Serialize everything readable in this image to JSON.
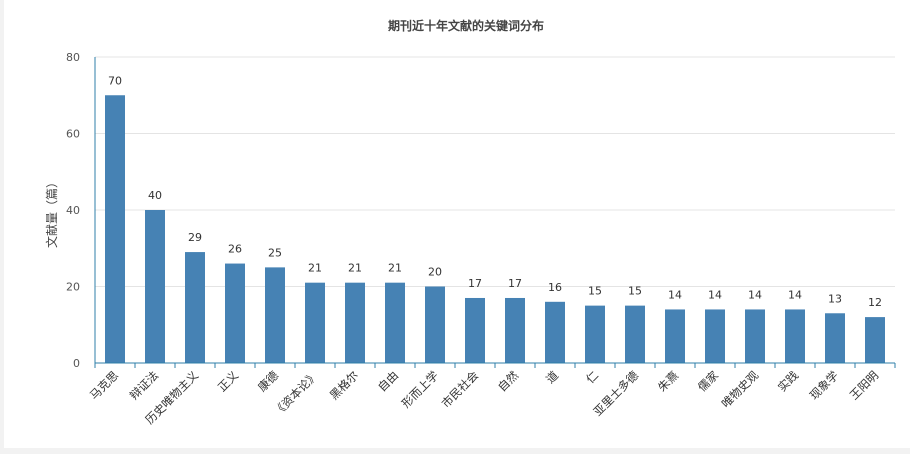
{
  "chart_data": {
    "type": "bar",
    "title": "期刊近十年文献的关键词分布",
    "xlabel": "",
    "ylabel": "文献量（篇）",
    "ylim": [
      0,
      80
    ],
    "yticks": [
      0,
      20,
      40,
      60,
      80
    ],
    "grid": true,
    "legend": "none",
    "bar_color": "#4682b4",
    "categories": [
      "马克思",
      "辩证法",
      "历史唯物主义",
      "正义",
      "康德",
      "《资本论》",
      "黑格尔",
      "自由",
      "形而上学",
      "市民社会",
      "自然",
      "道",
      "仁",
      "亚里士多德",
      "朱熹",
      "儒家",
      "唯物史观",
      "实践",
      "现象学",
      "王阳明"
    ],
    "values": [
      70,
      40,
      29,
      26,
      25,
      21,
      21,
      21,
      20,
      17,
      17,
      16,
      15,
      15,
      14,
      14,
      14,
      14,
      13,
      12
    ]
  }
}
